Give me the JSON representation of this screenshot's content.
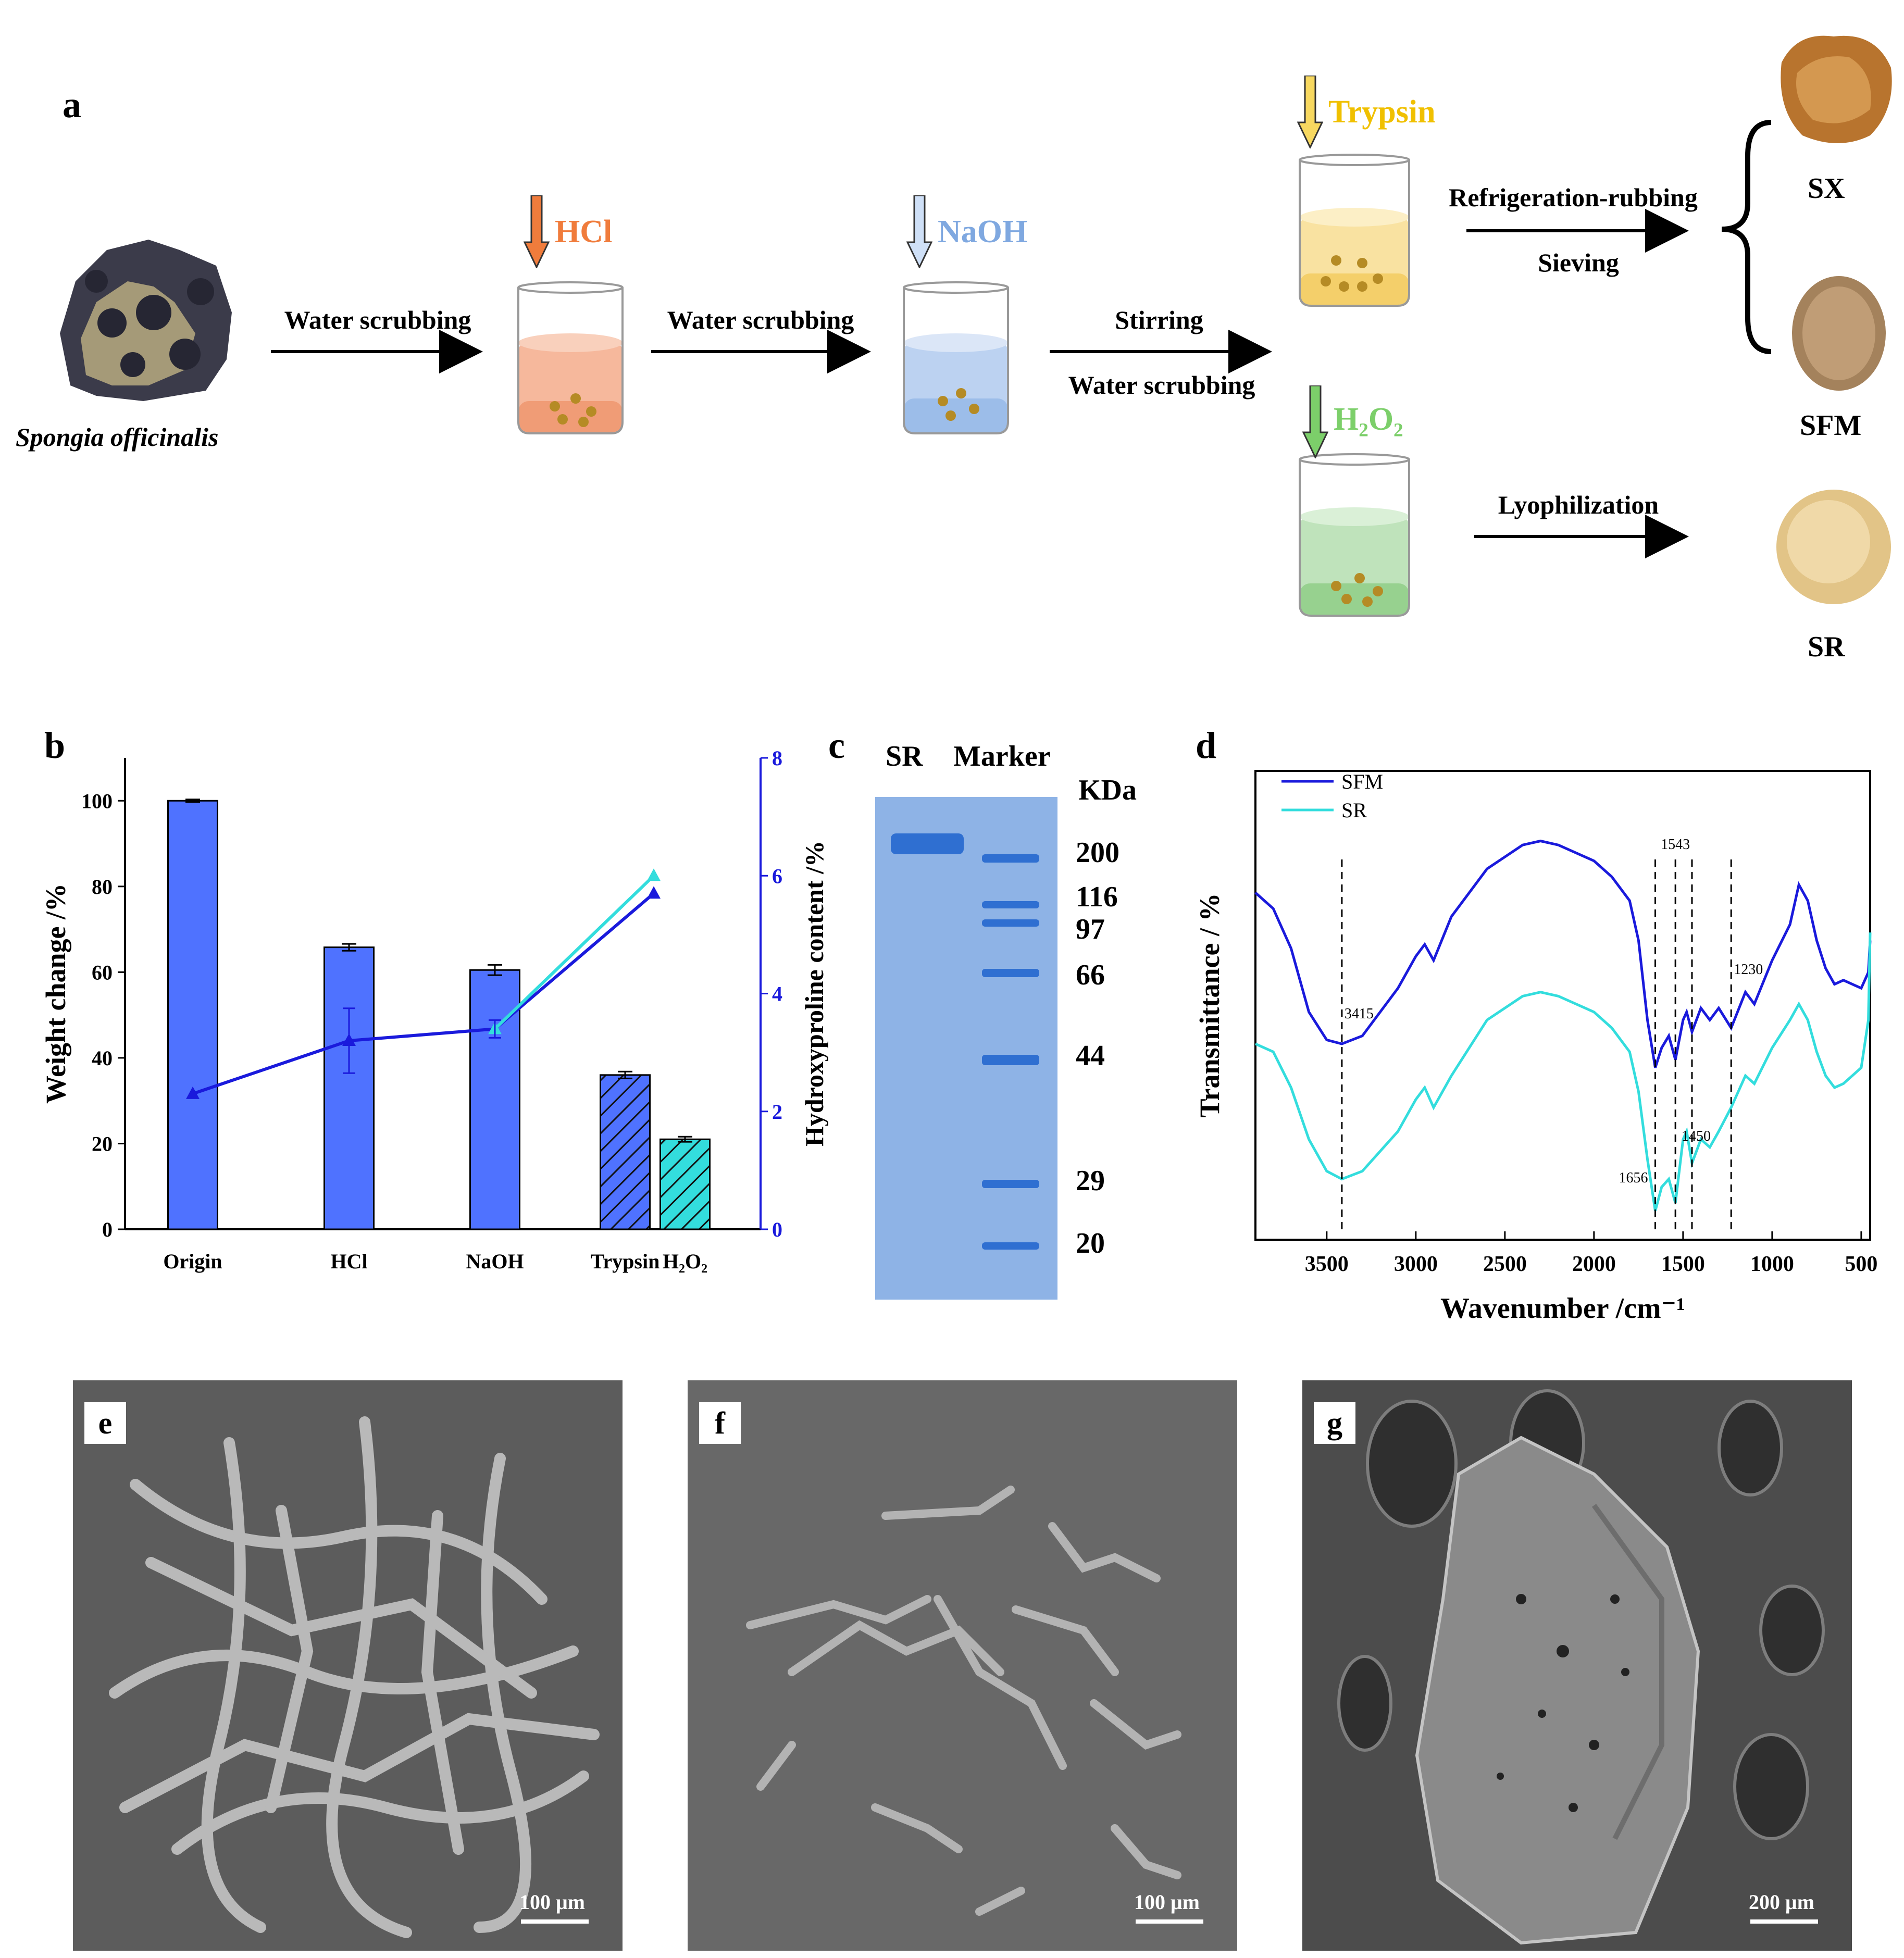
{
  "panel_a": {
    "letter": "a",
    "source_label": "Spongia officinalis",
    "steps": [
      {
        "reagent": "HCl",
        "color": "#f07c3c"
      },
      {
        "reagent": "NaOH",
        "color": "#7fa8e0"
      },
      {
        "reagent": "Trypsin",
        "color": "#f0c000"
      },
      {
        "reagent": "H₂O₂",
        "color": "#7ccf6a"
      }
    ],
    "arrows": [
      {
        "top_label": "Water scrubbing",
        "bottom_label": ""
      },
      {
        "top_label": "Water scrubbing",
        "bottom_label": ""
      },
      {
        "top_label": "Stirring",
        "bottom_label": "Water scrubbing"
      },
      {
        "top_label": "Refrigeration-rubbing",
        "bottom_label": "Sieving"
      },
      {
        "top_label": "Lyophilization",
        "bottom_label": ""
      }
    ],
    "products": [
      "SX",
      "SFM",
      "SR"
    ]
  },
  "panel_b": {
    "letter": "b",
    "chart_data": {
      "type": "bar",
      "categories": [
        "Origin",
        "HCl",
        "NaOH",
        "Trypsin",
        "H₂O₂"
      ],
      "series": [
        {
          "values": [
            100,
            65.8,
            60.5,
            36.0,
            21.0
          ],
          "errors": [
            0.3,
            0.8,
            1.2,
            0.8,
            0.6
          ],
          "color": "#4f72ff"
        }
      ],
      "line_series": [
        {
          "x": [
            "Origin",
            "HCl",
            "NaOH",
            "Trypsin"
          ],
          "values": [
            2.3,
            3.2,
            3.4,
            5.7
          ],
          "color": "#1a1adc",
          "axis": "right"
        },
        {
          "x": [
            "NaOH",
            "Trypsin"
          ],
          "values": [
            3.4,
            6.0
          ],
          "color": "#33dddd",
          "axis": "right"
        }
      ],
      "ylabel": "Weight change /%",
      "y2label": "Hydroxyproline content /%",
      "ylim": [
        0,
        110
      ],
      "y2lim": [
        0,
        8
      ],
      "yticks": [
        "0",
        "20",
        "40",
        "60",
        "80",
        "100"
      ],
      "y2ticks": [
        "0",
        "2",
        "4",
        "6",
        "8"
      ]
    }
  },
  "panel_c": {
    "letter": "c",
    "lane_labels": [
      "SR",
      "Marker"
    ],
    "unit": "KDa",
    "marker_values": [
      "200",
      "116",
      "97",
      "66",
      "44",
      "29",
      "20"
    ]
  },
  "panel_d": {
    "letter": "d",
    "chart_data": {
      "type": "line",
      "xlabel": "Wavenumber /cm⁻¹",
      "ylabel": "Transmittance / %",
      "xlim": [
        3900,
        450
      ],
      "xticks": [
        "3500",
        "3000",
        "2500",
        "2000",
        "1500",
        "1000",
        "500"
      ],
      "series": [
        {
          "name": "SFM",
          "color": "#1a1adc",
          "x": [
            3900,
            3800,
            3700,
            3600,
            3500,
            3415,
            3300,
            3200,
            3100,
            3000,
            2950,
            2900,
            2800,
            2600,
            2400,
            2300,
            2200,
            2000,
            1900,
            1800,
            1750,
            1700,
            1656,
            1620,
            1580,
            1543,
            1500,
            1480,
            1450,
            1400,
            1350,
            1300,
            1230,
            1150,
            1100,
            1000,
            900,
            850,
            800,
            750,
            700,
            650,
            600,
            550,
            500,
            460,
            450
          ],
          "values": [
            82,
            78,
            68,
            52,
            45,
            44,
            46,
            52,
            58,
            66,
            69,
            65,
            76,
            88,
            94,
            95,
            94,
            90,
            86,
            80,
            70,
            50,
            38,
            43,
            46,
            40,
            50,
            52,
            47,
            53,
            50,
            53,
            48,
            57,
            54,
            65,
            74,
            84,
            80,
            70,
            63,
            59,
            60,
            59,
            58,
            62,
            70
          ]
        },
        {
          "name": "SR",
          "color": "#33dddd",
          "x": [
            3900,
            3800,
            3700,
            3600,
            3500,
            3415,
            3300,
            3200,
            3100,
            3000,
            2950,
            2900,
            2800,
            2600,
            2400,
            2300,
            2200,
            2000,
            1900,
            1800,
            1750,
            1700,
            1656,
            1620,
            1580,
            1543,
            1500,
            1480,
            1450,
            1400,
            1350,
            1300,
            1230,
            1150,
            1100,
            1000,
            900,
            850,
            800,
            750,
            700,
            650,
            600,
            550,
            500,
            460,
            450
          ],
          "values": [
            44,
            42,
            33,
            20,
            12,
            10,
            12,
            17,
            22,
            30,
            33,
            28,
            36,
            50,
            56,
            57,
            56,
            52,
            48,
            42,
            32,
            15,
            2,
            8,
            10,
            4,
            20,
            22,
            14,
            20,
            18,
            22,
            28,
            36,
            34,
            43,
            50,
            54,
            50,
            42,
            36,
            33,
            34,
            36,
            38,
            50,
            72
          ]
        }
      ],
      "annotations": [
        "3415",
        "1543",
        "1230",
        "1656",
        "1450"
      ],
      "annotation_positions": [
        3415,
        1543,
        1230,
        1656,
        1450
      ]
    }
  },
  "panel_e": {
    "letter": "e",
    "scale": "100 μm"
  },
  "panel_f": {
    "letter": "f",
    "scale": "100 μm"
  },
  "panel_g": {
    "letter": "g",
    "scale": "200 μm"
  }
}
